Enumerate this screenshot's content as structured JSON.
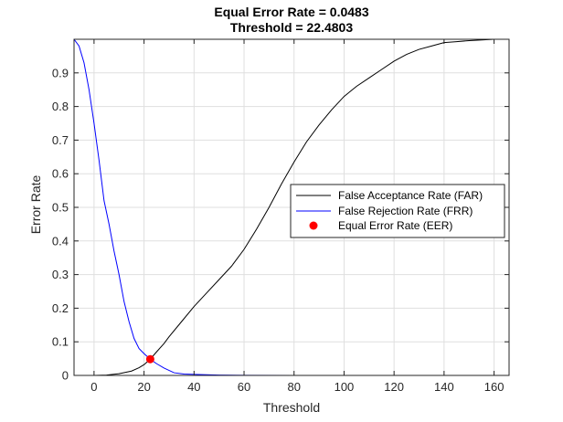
{
  "chart_data": {
    "type": "line",
    "title": [
      "Equal Error Rate = 0.0483",
      "Threshold = 22.4803"
    ],
    "xlabel": "Threshold",
    "ylabel": "Error Rate",
    "xlim": [
      -8,
      166
    ],
    "ylim": [
      0,
      1
    ],
    "xticks": [
      0,
      20,
      40,
      60,
      80,
      100,
      120,
      140,
      160
    ],
    "yticks": [
      0,
      0.1,
      0.2,
      0.3,
      0.4,
      0.5,
      0.6,
      0.7,
      0.8,
      0.9
    ],
    "grid": true,
    "legend_position": "right",
    "series": [
      {
        "name": "False Acceptance Rate (FAR)",
        "color": "#000000",
        "x": [
          -8,
          0,
          5,
          10,
          15,
          18,
          20,
          22.48,
          25,
          28,
          30,
          35,
          40,
          45,
          50,
          55,
          60,
          65,
          70,
          75,
          80,
          85,
          90,
          95,
          100,
          105,
          110,
          115,
          120,
          125,
          130,
          135,
          140,
          145,
          150,
          155,
          160,
          166
        ],
        "y": [
          0,
          0,
          0.001,
          0.005,
          0.013,
          0.023,
          0.032,
          0.0483,
          0.07,
          0.095,
          0.115,
          0.16,
          0.205,
          0.245,
          0.285,
          0.325,
          0.375,
          0.435,
          0.5,
          0.57,
          0.635,
          0.695,
          0.745,
          0.79,
          0.83,
          0.86,
          0.885,
          0.91,
          0.935,
          0.955,
          0.97,
          0.98,
          0.99,
          0.993,
          0.996,
          0.998,
          1.0,
          1.0
        ]
      },
      {
        "name": "False Rejection Rate (FRR)",
        "color": "#0000ff",
        "x": [
          -8,
          -6,
          -4,
          -2,
          0,
          2,
          4,
          6,
          8,
          10,
          12,
          14,
          16,
          18,
          20,
          22.48,
          25,
          28,
          32,
          36,
          40,
          50,
          60,
          80,
          100,
          166
        ],
        "y": [
          1.0,
          0.98,
          0.93,
          0.85,
          0.75,
          0.64,
          0.52,
          0.45,
          0.37,
          0.3,
          0.22,
          0.16,
          0.11,
          0.08,
          0.065,
          0.0483,
          0.035,
          0.022,
          0.008,
          0.004,
          0.003,
          0.001,
          0.0005,
          0.0,
          0.0,
          0.0
        ]
      }
    ],
    "points": [
      {
        "name": "Equal Error Rate (EER)",
        "color": "#ff0000",
        "x": 22.4803,
        "y": 0.0483
      }
    ]
  }
}
